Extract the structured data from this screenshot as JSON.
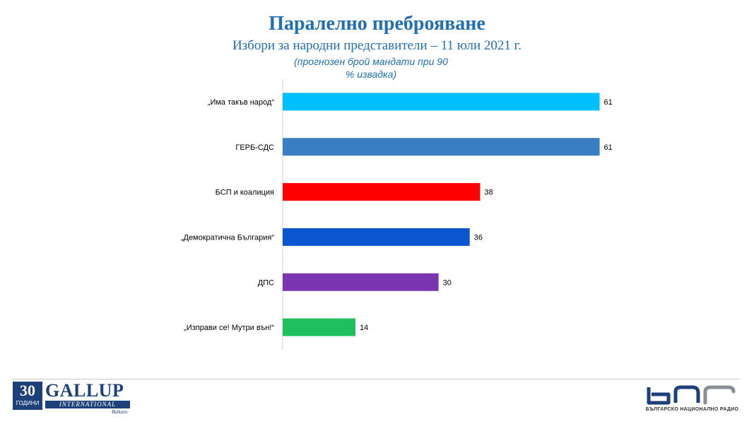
{
  "chart_data": {
    "type": "bar",
    "orientation": "horizontal",
    "title": "Паралелно преброяване",
    "subtitle": "Избори за народни представители – 11 юли 2021 г.",
    "note_lines": [
      "(прогнозен брой мандати при 90",
      "% извадка)"
    ],
    "categories": [
      "„Има такъв народ“",
      "ГЕРБ-СДС",
      "БСП и коалиция",
      "„Демократична България“",
      "ДПС",
      "„Изправи се! Мутри вън!“"
    ],
    "values": [
      61,
      61,
      38,
      36,
      30,
      14
    ],
    "colors": [
      "#00bfff",
      "#3a7fc4",
      "#ff0000",
      "#0a55d0",
      "#7a35b0",
      "#1fbf5f"
    ],
    "xlim": [
      0,
      68
    ],
    "grid": false,
    "legend": "none"
  },
  "footer": {
    "gallup_number": "30",
    "gallup_years": "ГОДИНИ",
    "gallup_name": "GALLUP",
    "gallup_international": "INTERNATIONAL",
    "gallup_balkans": "Balkans",
    "bnr_caption": "БЪЛГАРСКО НАЦИОНАЛНО РАДИО"
  }
}
